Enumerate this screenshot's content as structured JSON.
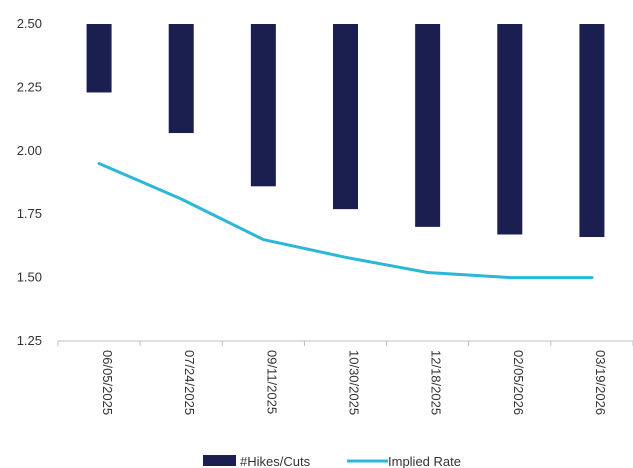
{
  "chart_data": {
    "type": "bar",
    "categories": [
      "06/05/2025",
      "07/24/2025",
      "09/11/2025",
      "10/30/2025",
      "12/18/2025",
      "02/05/2026",
      "03/19/2026"
    ],
    "series": [
      {
        "name": "#Hikes/Cuts",
        "kind": "bar",
        "color": "#1b1f4f",
        "base": 2.5,
        "values": [
          2.23,
          2.07,
          1.86,
          1.77,
          1.7,
          1.67,
          1.66
        ]
      },
      {
        "name": "Implied Rate",
        "kind": "line",
        "color": "#2bb7d8",
        "values": [
          1.95,
          1.81,
          1.65,
          1.58,
          1.52,
          1.5,
          1.5
        ]
      }
    ],
    "ylim": [
      1.25,
      2.5
    ],
    "yticks": [
      "1.25",
      "1.50",
      "1.75",
      "2.00",
      "2.25",
      "2.50"
    ],
    "grid": false,
    "legend": "bottom"
  }
}
